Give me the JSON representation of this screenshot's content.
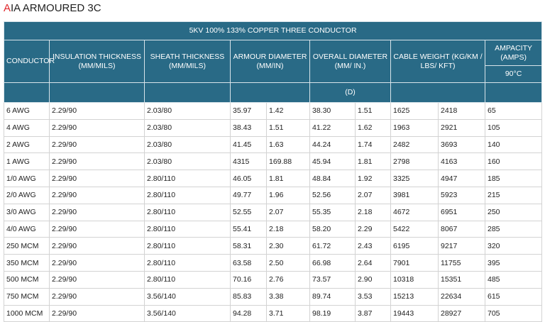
{
  "title": "AIA ARMOURED 3C",
  "table": {
    "caption": "5KV 100% 133% COPPER THREE CONDUCTOR",
    "headers": [
      "CONDUCTOR",
      "INSULATION THICKNESS (MM/MILS)",
      "SHEATH THICKNESS (MM/MILS)",
      "ARMOUR DIAMETER (MM/IN)",
      "OVERALL DIAMETER (MM/ IN.)",
      "CABLE WEIGHT (KG/KM / LBS/ KFT)",
      "AMPACITY (AMPS)"
    ],
    "ampacity_rating": "90°C",
    "diameter_note": "(D)",
    "rows": [
      [
        "6 AWG",
        "2.29/90",
        "2.03/80",
        "35.97",
        "1.42",
        "38.30",
        "1.51",
        "1625",
        "2418",
        "65"
      ],
      [
        "4 AWG",
        "2.29/90",
        "2.03/80",
        "38.43",
        "1.51",
        "41.22",
        "1.62",
        "1963",
        "2921",
        "105"
      ],
      [
        "2 AWG",
        "2.29/90",
        "2.03/80",
        "41.45",
        "1.63",
        "44.24",
        "1.74",
        "2482",
        "3693",
        "140"
      ],
      [
        "1 AWG",
        "2.29/90",
        "2.03/80",
        "4315",
        "169.88",
        "45.94",
        "1.81",
        "2798",
        "4163",
        "160"
      ],
      [
        "1/0 AWG",
        "2.29/90",
        "2.80/110",
        "46.05",
        "1.81",
        "48.84",
        "1.92",
        "3325",
        "4947",
        "185"
      ],
      [
        "2/0 AWG",
        "2.29/90",
        "2.80/110",
        "49.77",
        "1.96",
        "52.56",
        "2.07",
        "3981",
        "5923",
        "215"
      ],
      [
        "3/0 AWG",
        "2.29/90",
        "2.80/110",
        "52.55",
        "2.07",
        "55.35",
        "2.18",
        "4672",
        "6951",
        "250"
      ],
      [
        "4/0 AWG",
        "2.29/90",
        "2.80/110",
        "55.41",
        "2.18",
        "58.20",
        "2.29",
        "5422",
        "8067",
        "285"
      ],
      [
        "250 MCM",
        "2.29/90",
        "2.80/110",
        "58.31",
        "2.30",
        "61.72",
        "2.43",
        "6195",
        "9217",
        "320"
      ],
      [
        "350 MCM",
        "2.29/90",
        "2.80/110",
        "63.58",
        "2.50",
        "66.98",
        "2.64",
        "7901",
        "11755",
        "395"
      ],
      [
        "500 MCM",
        "2.29/90",
        "2.80/110",
        "70.16",
        "2.76",
        "73.57",
        "2.90",
        "10318",
        "15351",
        "485"
      ],
      [
        "750 MCM",
        "2.29/90",
        "3.56/140",
        "85.83",
        "3.38",
        "89.74",
        "3.53",
        "15213",
        "22634",
        "615"
      ],
      [
        "1000 MCM",
        "2.29/90",
        "3.56/140",
        "94.28",
        "3.71",
        "98.19",
        "3.87",
        "19443",
        "28927",
        "705"
      ]
    ]
  }
}
